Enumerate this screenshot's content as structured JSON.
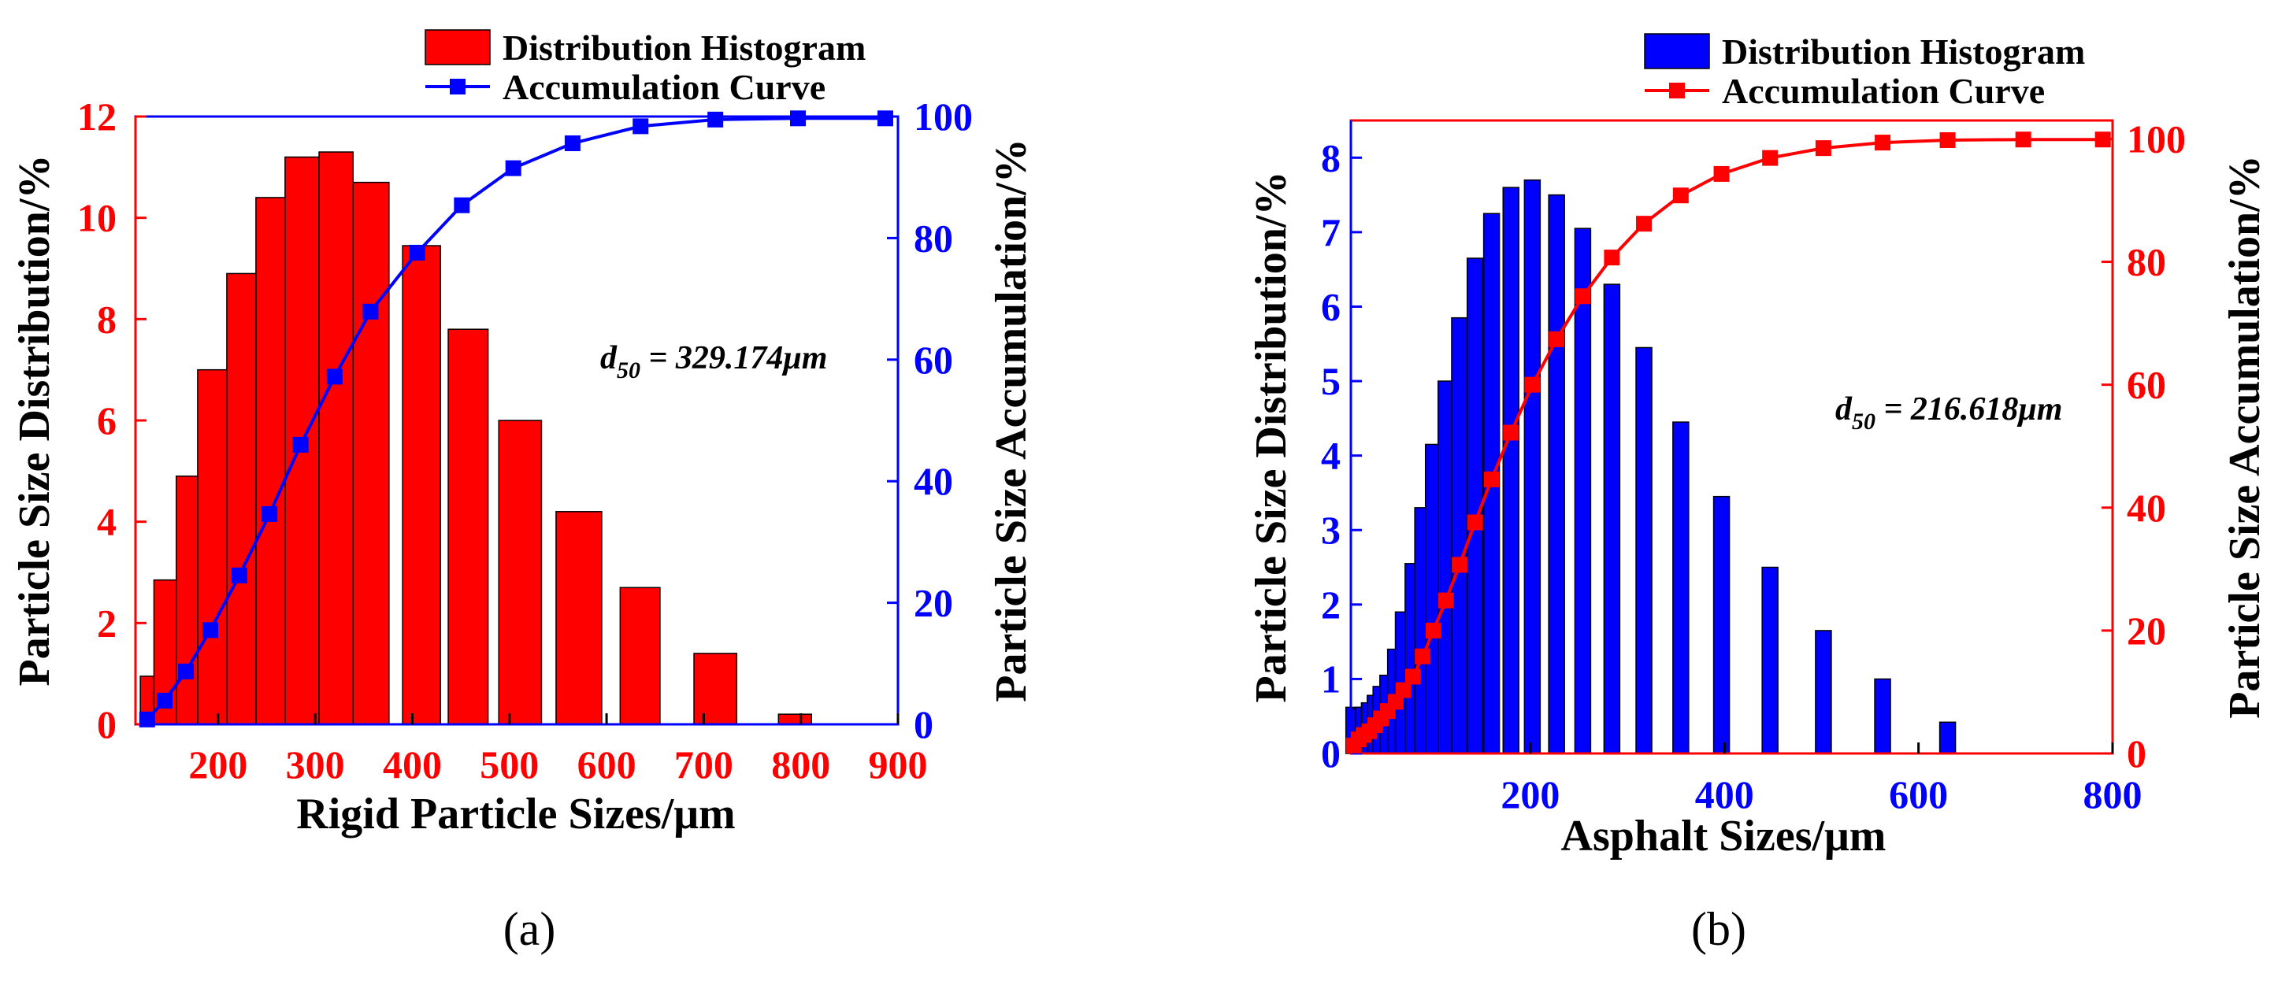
{
  "chart_data": [
    {
      "type": "bar+line",
      "panel_label": "(a)",
      "xlabel": "Rigid Particle Sizes/μm",
      "ylabel_left": "Particle Size Distribution/%",
      "ylabel_right": "Particle Size Accumulation/%",
      "xlim": [
        115,
        900
      ],
      "ylim_left": [
        0,
        12
      ],
      "ylim_right": [
        0,
        100
      ],
      "xticks": [
        200,
        300,
        400,
        500,
        600,
        700,
        800,
        900
      ],
      "yticks_left": [
        0,
        2,
        4,
        6,
        8,
        10,
        12
      ],
      "yticks_right": [
        0,
        20,
        40,
        60,
        80,
        100
      ],
      "annotation": {
        "prefix": "d",
        "sub": "50",
        "text": " = 329.174μm"
      },
      "legend": {
        "histogram": "Distribution Histogram",
        "curve": "Accumulation Curve",
        "placement": "top-center, above plot"
      },
      "colors": {
        "bar": "#ff0000",
        "curve": "#0000ff",
        "left_axis": "#ff0000",
        "right_axis": "#0000ff",
        "frame": "#0000ff"
      },
      "histogram": [
        {
          "lo": 120,
          "hi": 134,
          "value": 0.95
        },
        {
          "lo": 134,
          "hi": 157,
          "value": 2.85
        },
        {
          "lo": 157,
          "hi": 179,
          "value": 4.9
        },
        {
          "lo": 179,
          "hi": 209,
          "value": 7.0
        },
        {
          "lo": 209,
          "hi": 239,
          "value": 8.9
        },
        {
          "lo": 239,
          "hi": 269,
          "value": 10.4
        },
        {
          "lo": 269,
          "hi": 304,
          "value": 11.2
        },
        {
          "lo": 304,
          "hi": 339,
          "value": 11.3
        },
        {
          "lo": 339,
          "hi": 376,
          "value": 10.7
        },
        {
          "lo": 390,
          "hi": 429,
          "value": 9.45
        },
        {
          "lo": 437,
          "hi": 478,
          "value": 7.8
        },
        {
          "lo": 489,
          "hi": 533,
          "value": 6.0
        },
        {
          "lo": 548,
          "hi": 595,
          "value": 4.2
        },
        {
          "lo": 614,
          "hi": 655,
          "value": 2.7
        },
        {
          "lo": 690,
          "hi": 734,
          "value": 1.4
        },
        {
          "lo": 777,
          "hi": 811,
          "value": 0.2
        }
      ],
      "curve": {
        "x": [
          127,
          145,
          167,
          192,
          222,
          253,
          285,
          320,
          357,
          405,
          451,
          504,
          565,
          635,
          712,
          797,
          887
        ],
        "y": [
          0.8,
          3.9,
          8.7,
          15.5,
          24.5,
          34.6,
          46.0,
          57.2,
          67.9,
          77.6,
          85.4,
          91.5,
          95.6,
          98.4,
          99.5,
          99.7,
          99.7
        ]
      }
    },
    {
      "type": "bar+line",
      "panel_label": "(b)",
      "xlabel": "Asphalt Sizes/μm",
      "ylabel_left": "Particle Size Distribution/%",
      "ylabel_right": "Particle Size Accumulation/%",
      "xlim": [
        15,
        800
      ],
      "ylim_left": [
        0,
        8.5
      ],
      "ylim_right": [
        0,
        103
      ],
      "xticks": [
        200,
        400,
        600,
        800
      ],
      "yticks_left": [
        0,
        1,
        2,
        3,
        4,
        5,
        6,
        7,
        8
      ],
      "yticks_right": [
        0,
        20,
        40,
        60,
        80,
        100
      ],
      "annotation": {
        "prefix": "d",
        "sub": "50",
        "text": " = 216.618μm"
      },
      "legend": {
        "histogram": "Distribution Histogram",
        "curve": "Accumulation Curve",
        "placement": "top-center, above plot"
      },
      "colors": {
        "bar": "#0000ff",
        "curve": "#ff0000",
        "left_axis": "#0000ff",
        "right_axis": "#ff0000",
        "frame": "#ff0000"
      },
      "histogram": [
        {
          "x": 18,
          "value": 0.62
        },
        {
          "x": 23,
          "value": 0.6
        },
        {
          "x": 28,
          "value": 0.62
        },
        {
          "x": 34,
          "value": 0.68
        },
        {
          "x": 40,
          "value": 0.78
        },
        {
          "x": 46,
          "value": 0.9
        },
        {
          "x": 53,
          "value": 1.05
        },
        {
          "x": 61,
          "value": 1.4
        },
        {
          "x": 69,
          "value": 1.9
        },
        {
          "x": 79,
          "value": 2.55
        },
        {
          "x": 89,
          "value": 3.3
        },
        {
          "x": 100,
          "value": 4.15
        },
        {
          "x": 113,
          "value": 5.0
        },
        {
          "x": 127,
          "value": 5.85
        },
        {
          "x": 143,
          "value": 6.65
        },
        {
          "x": 160,
          "value": 7.25
        },
        {
          "x": 180,
          "value": 7.6
        },
        {
          "x": 202,
          "value": 7.7
        },
        {
          "x": 227,
          "value": 7.5
        },
        {
          "x": 254,
          "value": 7.05
        },
        {
          "x": 284,
          "value": 6.3
        },
        {
          "x": 317,
          "value": 5.45
        },
        {
          "x": 355,
          "value": 4.45
        },
        {
          "x": 397,
          "value": 3.45
        },
        {
          "x": 447,
          "value": 2.5
        },
        {
          "x": 502,
          "value": 1.65
        },
        {
          "x": 563,
          "value": 1.0
        },
        {
          "x": 630,
          "value": 0.42
        }
      ],
      "curve": {
        "x": [
          18,
          23,
          28,
          34,
          40,
          46,
          53,
          61,
          69,
          79,
          89,
          100,
          113,
          127,
          143,
          160,
          180,
          202,
          227,
          254,
          284,
          317,
          355,
          397,
          447,
          502,
          563,
          630,
          708,
          790
        ],
        "y": [
          1.3,
          2.3,
          3.0,
          3.6,
          4.6,
          5.7,
          6.9,
          8.4,
          10.3,
          12.5,
          15.8,
          20.0,
          24.9,
          30.7,
          37.6,
          44.6,
          52.2,
          60.0,
          67.4,
          74.4,
          80.7,
          86.2,
          90.8,
          94.3,
          96.9,
          98.5,
          99.4,
          99.8,
          99.9,
          99.9
        ]
      }
    }
  ]
}
